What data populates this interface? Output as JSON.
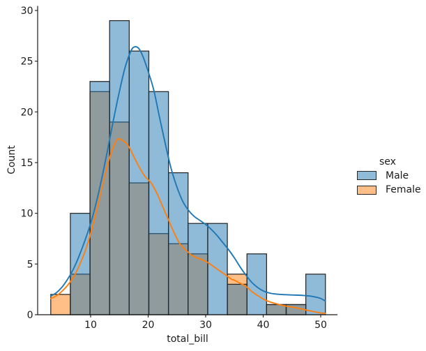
{
  "chart_data": {
    "type": "bar",
    "subtype": "histogram-with-kde",
    "title": "",
    "xlabel": "total_bill",
    "ylabel": "Count",
    "x_ticks": [
      10,
      20,
      30,
      40,
      50
    ],
    "y_ticks": [
      0,
      5,
      10,
      15,
      20,
      25,
      30
    ],
    "xlim": [
      0.79,
      52.91
    ],
    "ylim": [
      0,
      30.45
    ],
    "grid": false,
    "bin_edges": [
      3.07,
      6.48,
      9.89,
      13.3,
      16.71,
      20.12,
      23.53,
      26.94,
      30.36,
      33.77,
      37.18,
      40.59,
      44.0,
      47.41,
      50.82
    ],
    "series": [
      {
        "name": "Male",
        "counts": [
          0,
          10,
          23,
          29,
          26,
          22,
          14,
          9,
          9,
          3,
          6,
          1,
          1,
          4
        ]
      },
      {
        "name": "Female",
        "counts": [
          2,
          4,
          22,
          19,
          13,
          8,
          7,
          6,
          0,
          4,
          0,
          1,
          1,
          0
        ]
      }
    ],
    "kde": [
      {
        "name": "Male",
        "color": "#1f77b4",
        "points": [
          [
            3.07,
            1.85
          ],
          [
            4,
            2.15
          ],
          [
            5,
            2.7
          ],
          [
            6,
            3.5
          ],
          [
            7,
            4.5
          ],
          [
            8,
            5.8
          ],
          [
            9,
            7.3
          ],
          [
            10,
            9.0
          ],
          [
            11,
            11.1
          ],
          [
            12,
            13.6
          ],
          [
            13,
            16.4
          ],
          [
            14,
            19.3
          ],
          [
            15,
            22.0
          ],
          [
            16,
            24.4
          ],
          [
            17,
            26.0
          ],
          [
            17.6,
            26.4
          ],
          [
            18.3,
            26.3
          ],
          [
            19,
            25.6
          ],
          [
            20,
            24.0
          ],
          [
            21,
            22.1
          ],
          [
            22,
            19.4
          ],
          [
            23,
            16.8
          ],
          [
            24,
            14.4
          ],
          [
            25,
            12.6
          ],
          [
            26,
            11.2
          ],
          [
            27,
            10.3
          ],
          [
            28,
            9.7
          ],
          [
            29,
            9.3
          ],
          [
            30,
            8.9
          ],
          [
            31,
            8.4
          ],
          [
            32,
            7.8
          ],
          [
            33,
            7.1
          ],
          [
            34,
            6.4
          ],
          [
            35,
            5.6
          ],
          [
            36,
            4.7
          ],
          [
            37,
            3.9
          ],
          [
            38,
            3.2
          ],
          [
            39,
            2.7
          ],
          [
            40,
            2.35
          ],
          [
            41,
            2.15
          ],
          [
            42,
            2.05
          ],
          [
            43,
            2.0
          ],
          [
            45,
            1.95
          ],
          [
            47,
            1.9
          ],
          [
            48,
            1.85
          ],
          [
            49,
            1.75
          ],
          [
            50,
            1.6
          ],
          [
            50.81,
            1.35
          ]
        ]
      },
      {
        "name": "Female",
        "color": "#ff7f0e",
        "points": [
          [
            3.07,
            1.6
          ],
          [
            4,
            1.85
          ],
          [
            5,
            2.3
          ],
          [
            6,
            2.9
          ],
          [
            7,
            3.7
          ],
          [
            8,
            4.8
          ],
          [
            9,
            6.2
          ],
          [
            10,
            8.0
          ],
          [
            11,
            10.2
          ],
          [
            12,
            12.6
          ],
          [
            13,
            14.9
          ],
          [
            14,
            16.6
          ],
          [
            14.7,
            17.3
          ],
          [
            15.5,
            17.2
          ],
          [
            16.5,
            16.7
          ],
          [
            17.5,
            15.6
          ],
          [
            18.5,
            14.5
          ],
          [
            19.5,
            13.6
          ],
          [
            20.5,
            13.0
          ],
          [
            21.5,
            12.0
          ],
          [
            22.5,
            10.7
          ],
          [
            23.5,
            9.4
          ],
          [
            24.5,
            8.1
          ],
          [
            25.5,
            7.0
          ],
          [
            26.5,
            6.4
          ],
          [
            27.5,
            5.9
          ],
          [
            28.5,
            5.6
          ],
          [
            29.5,
            5.4
          ],
          [
            30.5,
            5.1
          ],
          [
            31.5,
            4.7
          ],
          [
            32.5,
            4.3
          ],
          [
            33.5,
            3.9
          ],
          [
            34.5,
            3.5
          ],
          [
            35,
            3.4
          ],
          [
            36,
            3.1
          ],
          [
            37,
            2.8
          ],
          [
            38,
            2.3
          ],
          [
            39,
            1.9
          ],
          [
            40,
            1.55
          ],
          [
            41,
            1.3
          ],
          [
            42,
            1.12
          ],
          [
            43,
            0.97
          ],
          [
            44,
            0.85
          ],
          [
            45,
            0.75
          ],
          [
            46,
            0.65
          ],
          [
            47,
            0.52
          ],
          [
            48,
            0.4
          ],
          [
            49,
            0.28
          ],
          [
            50,
            0.18
          ],
          [
            50.81,
            0.12
          ]
        ]
      }
    ],
    "legend": {
      "title": "sex",
      "position": "right-outside",
      "entries": [
        {
          "label": "Male",
          "fill": "rgba(31,119,180,0.5)",
          "line": "#1f77b4"
        },
        {
          "label": "Female",
          "fill": "rgba(255,127,14,0.5)",
          "line": "#ff7f0e"
        }
      ]
    },
    "colors": {
      "male_fill": "rgba(31,119,180,0.5)",
      "female_fill": "rgba(255,127,14,0.5)",
      "overlap_appearance": "#8f9b9d",
      "bar_edge": "#262626",
      "axis": "#1a1a1a",
      "text": "#1a1a1a"
    }
  }
}
